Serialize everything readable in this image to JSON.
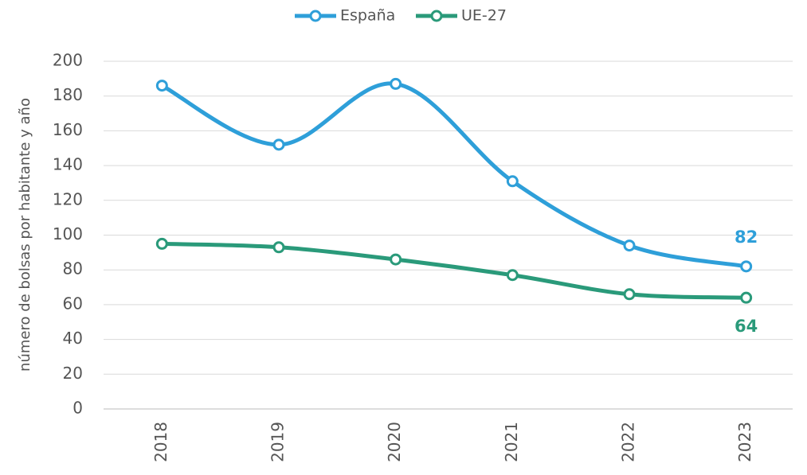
{
  "chart_data": {
    "type": "line",
    "y_label": "número de bolsas por habitante y año",
    "categories": [
      "2018",
      "2019",
      "2020",
      "2021",
      "2022",
      "2023"
    ],
    "series": [
      {
        "name": "España",
        "color": "#2e9fd9",
        "values": [
          186,
          152,
          187,
          131,
          94,
          82
        ]
      },
      {
        "name": "UE-27",
        "color": "#2a9a7a",
        "values": [
          95,
          93,
          86,
          77,
          66,
          64
        ]
      }
    ],
    "ylim": [
      0,
      200
    ],
    "yticks": [
      0,
      20,
      40,
      60,
      80,
      100,
      120,
      140,
      160,
      180,
      200
    ],
    "grid": true,
    "legend": "top"
  }
}
